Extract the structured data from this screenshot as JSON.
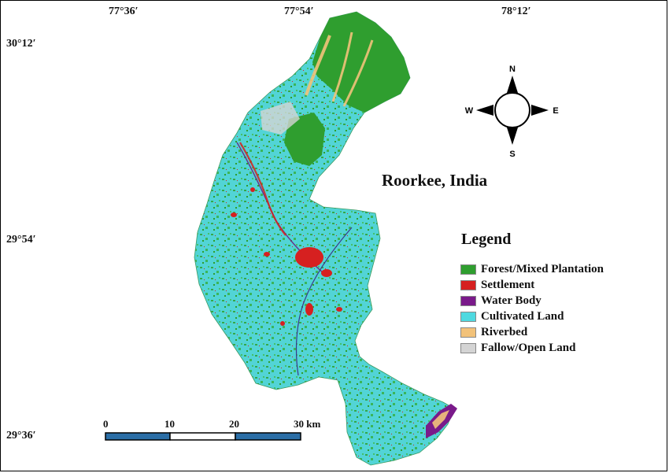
{
  "map": {
    "title": "Roorkee, India",
    "longitude_labels": [
      "77°36′",
      "77°54′",
      "78°12′"
    ],
    "latitude_labels": [
      "30°12′",
      "29°54′",
      "29°36′"
    ],
    "compass": {
      "north": "N",
      "south": "S",
      "east": "E",
      "west": "W"
    },
    "legend": {
      "title": "Legend",
      "items": [
        {
          "label": "Forest/Mixed Plantation",
          "color": "#2f9e2f"
        },
        {
          "label": "Settlement",
          "color": "#d62020"
        },
        {
          "label": "Water Body",
          "color": "#7a1a8a"
        },
        {
          "label": "Cultivated Land",
          "color": "#4fd9e0"
        },
        {
          "label": "Riverbed",
          "color": "#f2c27a"
        },
        {
          "label": "Fallow/Open Land",
          "color": "#d4d4d4"
        }
      ]
    },
    "scale_bar": {
      "ticks": [
        "0",
        "10",
        "20",
        "30 km"
      ],
      "fill_colors": [
        "#2b6ea6",
        "#ffffff",
        "#2b6ea6"
      ]
    }
  }
}
